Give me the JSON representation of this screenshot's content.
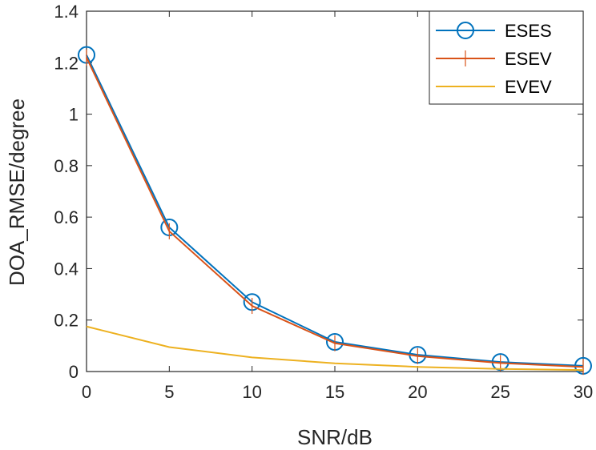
{
  "chart_data": {
    "type": "line",
    "xlabel": "SNR/dB",
    "ylabel": "DOA_RMSE/degree",
    "x": [
      0,
      5,
      10,
      15,
      20,
      25,
      30
    ],
    "xlim": [
      0,
      30
    ],
    "ylim": [
      0,
      1.4
    ],
    "xticks": [
      0,
      5,
      10,
      15,
      20,
      25,
      30
    ],
    "yticks": [
      0,
      0.2,
      0.4,
      0.6,
      0.8,
      1,
      1.2,
      1.4
    ],
    "xtick_labels": [
      "0",
      "5",
      "10",
      "15",
      "20",
      "25",
      "30"
    ],
    "ytick_labels": [
      "0",
      "0.2",
      "0.4",
      "0.6",
      "0.8",
      "1",
      "1.2",
      "1.4"
    ],
    "grid": false,
    "legend_position": "top-right",
    "series": [
      {
        "name": "ESES",
        "color": "#0072BD",
        "marker": "circle",
        "values": [
          1.23,
          0.56,
          0.27,
          0.115,
          0.065,
          0.037,
          0.022
        ]
      },
      {
        "name": "ESEV",
        "color": "#D95319",
        "marker": "vertical-line",
        "values": [
          1.22,
          0.545,
          0.255,
          0.11,
          0.06,
          0.033,
          0.018
        ]
      },
      {
        "name": "EVEV",
        "color": "#EDB120",
        "marker": "none",
        "values": [
          0.175,
          0.095,
          0.055,
          0.032,
          0.018,
          0.01,
          0.006
        ]
      }
    ]
  }
}
